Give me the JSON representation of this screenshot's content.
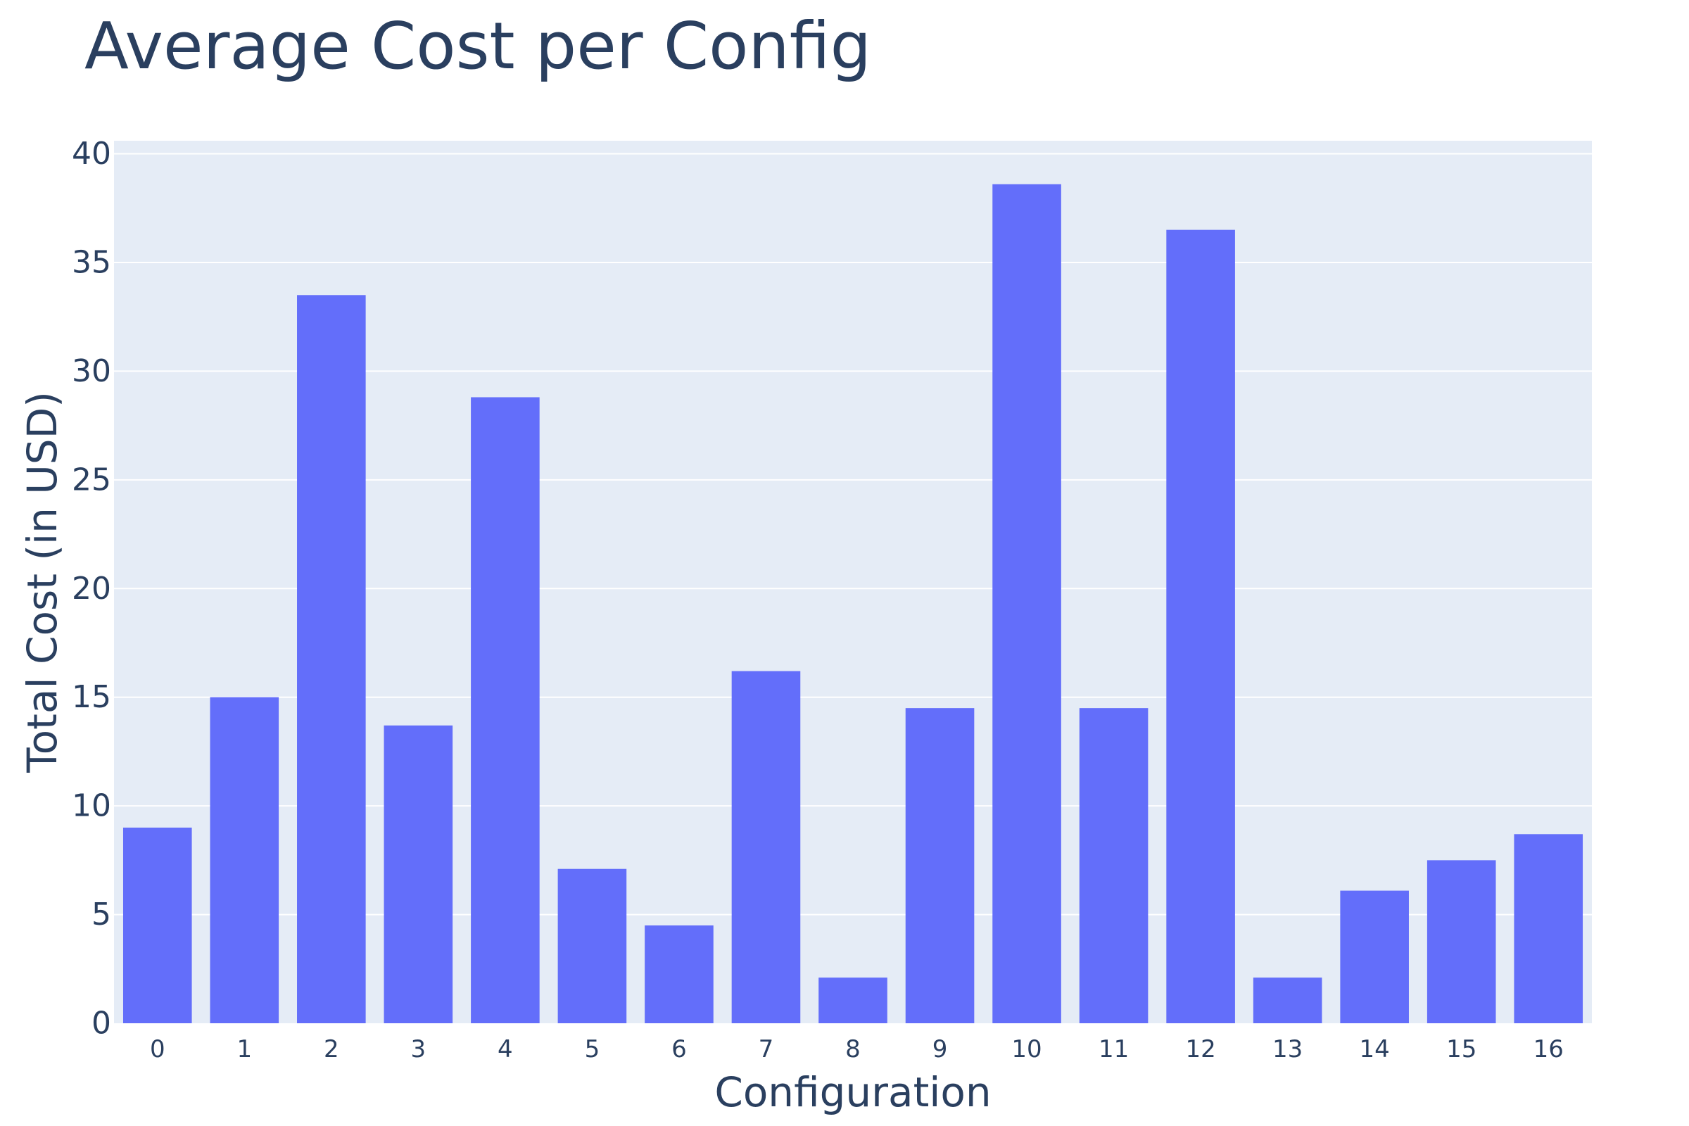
{
  "chart_data": {
    "type": "bar",
    "title": "Average Cost per Config",
    "xlabel": "Configuration",
    "ylabel": "Total Cost (in USD)",
    "categories": [
      "0",
      "1",
      "2",
      "3",
      "4",
      "5",
      "6",
      "7",
      "8",
      "9",
      "10",
      "11",
      "12",
      "13",
      "14",
      "15",
      "16"
    ],
    "values": [
      9.0,
      15.0,
      33.5,
      13.7,
      28.8,
      7.1,
      4.5,
      16.2,
      2.1,
      14.5,
      38.6,
      14.5,
      36.5,
      2.1,
      6.1,
      7.5,
      8.7
    ],
    "ylim": [
      0,
      40.6
    ],
    "yticks": [
      0,
      5,
      10,
      15,
      20,
      25,
      30,
      35,
      40
    ],
    "grid": true,
    "legend": "none",
    "colors": {
      "bar": "#636efa",
      "plot_background": "#e5ecf6",
      "grid": "#ffffff",
      "text": "#2a3f5f"
    }
  }
}
